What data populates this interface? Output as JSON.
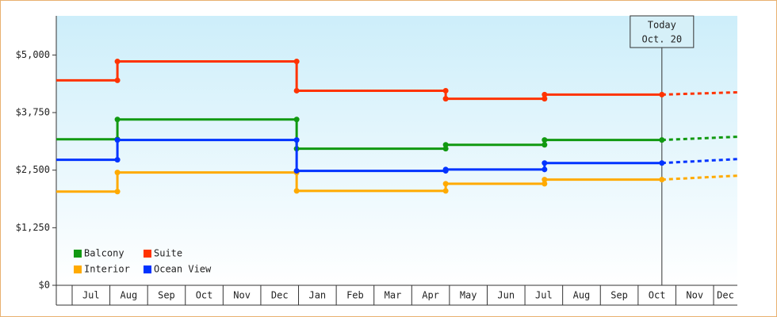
{
  "chart_data": {
    "type": "step-line",
    "x": [
      -0.42,
      1.2,
      1.2,
      5.95,
      5.95,
      9.9,
      9.9,
      12.52,
      12.52,
      15.63
    ],
    "forecast_x": [
      15.63,
      17.63
    ],
    "xlim": [
      -0.42,
      17.63
    ],
    "xticks": [
      {
        "value": 0.5,
        "label": "Jul"
      },
      {
        "value": 1.5,
        "label": "Aug"
      },
      {
        "value": 2.5,
        "label": "Sep"
      },
      {
        "value": 3.5,
        "label": "Oct"
      },
      {
        "value": 4.5,
        "label": "Nov"
      },
      {
        "value": 5.5,
        "label": "Dec"
      },
      {
        "value": 6.5,
        "label": "Jan"
      },
      {
        "value": 7.5,
        "label": "Feb"
      },
      {
        "value": 8.5,
        "label": "Mar"
      },
      {
        "value": 9.5,
        "label": "Apr"
      },
      {
        "value": 10.5,
        "label": "May"
      },
      {
        "value": 11.5,
        "label": "Jun"
      },
      {
        "value": 12.5,
        "label": "Jul"
      },
      {
        "value": 13.5,
        "label": "Aug"
      },
      {
        "value": 14.5,
        "label": "Sep"
      },
      {
        "value": 15.5,
        "label": "Oct"
      },
      {
        "value": 16.5,
        "label": "Nov"
      },
      {
        "value": 17.5,
        "label": "Dec"
      }
    ],
    "ylim": [
      0,
      5850
    ],
    "yticks": [
      {
        "value": 0,
        "label": "$0"
      },
      {
        "value": 1250,
        "label": "$1,250"
      },
      {
        "value": 2500,
        "label": "$2,500"
      },
      {
        "value": 3750,
        "label": "$3,750"
      },
      {
        "value": 5000,
        "label": "$5,000"
      }
    ],
    "series": [
      {
        "name": "Balcony",
        "color": "#119911",
        "values": [
          3170,
          3170,
          3600,
          3600,
          2965,
          2965,
          3050,
          3050,
          3155,
          3155
        ],
        "forecast": [
          3155,
          3225
        ]
      },
      {
        "name": "Suite",
        "color": "#ff3300",
        "values": [
          4450,
          4450,
          4860,
          4860,
          4225,
          4225,
          4050,
          4050,
          4140,
          4140
        ],
        "forecast": [
          4140,
          4190
        ]
      },
      {
        "name": "Interior",
        "color": "#ffaa00",
        "values": [
          2035,
          2035,
          2450,
          2450,
          2050,
          2050,
          2205,
          2205,
          2295,
          2295
        ],
        "forecast": [
          2295,
          2380
        ]
      },
      {
        "name": "Ocean View",
        "color": "#0033ff",
        "values": [
          2725,
          2725,
          3155,
          3155,
          2485,
          2485,
          2515,
          2515,
          2655,
          2655
        ],
        "forecast": [
          2655,
          2740
        ]
      }
    ],
    "annotation": {
      "x": 15.63,
      "lines": [
        "Today",
        "Oct. 20"
      ]
    }
  }
}
